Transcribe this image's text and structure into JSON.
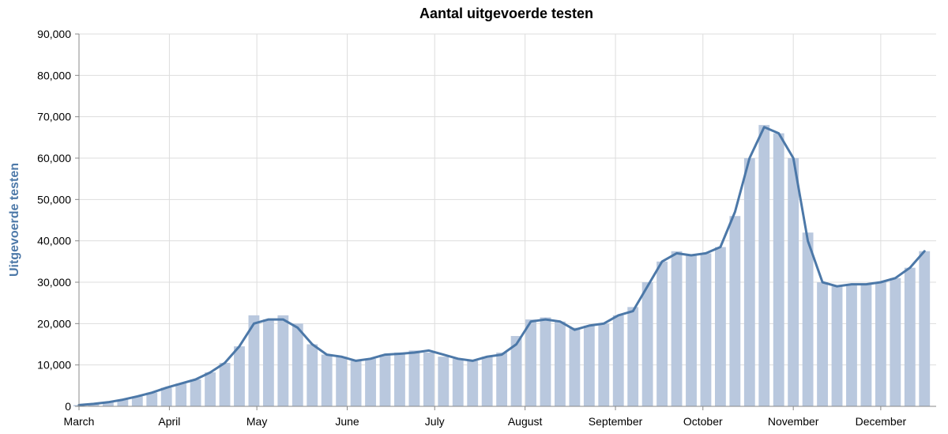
{
  "colors": {
    "bar": "#b9c8de",
    "line": "#4c78a8",
    "ylabel": "#4c78a8",
    "grid": "#dddddd",
    "axis": "#888888"
  },
  "chart_data": {
    "type": "bar",
    "title": "Aantal uitgevoerde testen",
    "xlabel": "",
    "ylabel": "Uitgevoerde testen",
    "ylim": [
      0,
      90000
    ],
    "y_ticks": [
      0,
      10000,
      20000,
      30000,
      40000,
      50000,
      60000,
      70000,
      80000,
      90000
    ],
    "y_tick_labels": [
      "0",
      "10,000",
      "20,000",
      "30,000",
      "40,000",
      "50,000",
      "60,000",
      "70,000",
      "80,000",
      "90,000"
    ],
    "x_range": [
      "2020-03-01",
      "2020-12-20"
    ],
    "x_ticks": [
      {
        "date": "2020-03-01",
        "label": "March"
      },
      {
        "date": "2020-04-01",
        "label": "April"
      },
      {
        "date": "2020-05-01",
        "label": "May"
      },
      {
        "date": "2020-06-01",
        "label": "June"
      },
      {
        "date": "2020-07-01",
        "label": "July"
      },
      {
        "date": "2020-08-01",
        "label": "August"
      },
      {
        "date": "2020-09-01",
        "label": "September"
      },
      {
        "date": "2020-10-01",
        "label": "October"
      },
      {
        "date": "2020-11-01",
        "label": "November"
      },
      {
        "date": "2020-12-01",
        "label": "December"
      }
    ],
    "grid": true,
    "series": [
      {
        "mark": "bar",
        "points": [
          {
            "x": "2020-03-01",
            "y": 300
          },
          {
            "x": "2020-03-06",
            "y": 600
          },
          {
            "x": "2020-03-11",
            "y": 1000
          },
          {
            "x": "2020-03-16",
            "y": 1600
          },
          {
            "x": "2020-03-21",
            "y": 2400
          },
          {
            "x": "2020-03-26",
            "y": 3300
          },
          {
            "x": "2020-03-31",
            "y": 4500
          },
          {
            "x": "2020-04-05",
            "y": 5500
          },
          {
            "x": "2020-04-10",
            "y": 6500
          },
          {
            "x": "2020-04-15",
            "y": 8200
          },
          {
            "x": "2020-04-20",
            "y": 10500
          },
          {
            "x": "2020-04-25",
            "y": 14500
          },
          {
            "x": "2020-04-30",
            "y": 22000
          },
          {
            "x": "2020-05-05",
            "y": 21000
          },
          {
            "x": "2020-05-10",
            "y": 22000
          },
          {
            "x": "2020-05-15",
            "y": 20000
          },
          {
            "x": "2020-05-20",
            "y": 15000
          },
          {
            "x": "2020-05-25",
            "y": 12500
          },
          {
            "x": "2020-05-30",
            "y": 12000
          },
          {
            "x": "2020-06-04",
            "y": 11000
          },
          {
            "x": "2020-06-09",
            "y": 11500
          },
          {
            "x": "2020-06-14",
            "y": 12500
          },
          {
            "x": "2020-06-19",
            "y": 13000
          },
          {
            "x": "2020-06-24",
            "y": 13500
          },
          {
            "x": "2020-06-29",
            "y": 13000
          },
          {
            "x": "2020-07-04",
            "y": 12000
          },
          {
            "x": "2020-07-09",
            "y": 11500
          },
          {
            "x": "2020-07-14",
            "y": 11000
          },
          {
            "x": "2020-07-19",
            "y": 12000
          },
          {
            "x": "2020-07-24",
            "y": 13000
          },
          {
            "x": "2020-07-29",
            "y": 17000
          },
          {
            "x": "2020-08-03",
            "y": 21000
          },
          {
            "x": "2020-08-08",
            "y": 21500
          },
          {
            "x": "2020-08-13",
            "y": 20500
          },
          {
            "x": "2020-08-18",
            "y": 19000
          },
          {
            "x": "2020-08-23",
            "y": 19500
          },
          {
            "x": "2020-08-28",
            "y": 20000
          },
          {
            "x": "2020-09-02",
            "y": 22000
          },
          {
            "x": "2020-09-07",
            "y": 24000
          },
          {
            "x": "2020-09-12",
            "y": 30000
          },
          {
            "x": "2020-09-17",
            "y": 35000
          },
          {
            "x": "2020-09-22",
            "y": 37500
          },
          {
            "x": "2020-09-27",
            "y": 36500
          },
          {
            "x": "2020-10-02",
            "y": 37000
          },
          {
            "x": "2020-10-07",
            "y": 38500
          },
          {
            "x": "2020-10-12",
            "y": 46000
          },
          {
            "x": "2020-10-17",
            "y": 60000
          },
          {
            "x": "2020-10-22",
            "y": 68000
          },
          {
            "x": "2020-10-27",
            "y": 66000
          },
          {
            "x": "2020-11-01",
            "y": 60000
          },
          {
            "x": "2020-11-06",
            "y": 42000
          },
          {
            "x": "2020-11-11",
            "y": 30000
          },
          {
            "x": "2020-11-16",
            "y": 29000
          },
          {
            "x": "2020-11-21",
            "y": 29500
          },
          {
            "x": "2020-11-26",
            "y": 29500
          },
          {
            "x": "2020-12-01",
            "y": 30000
          },
          {
            "x": "2020-12-06",
            "y": 31000
          },
          {
            "x": "2020-12-11",
            "y": 33500
          },
          {
            "x": "2020-12-16",
            "y": 37500
          }
        ]
      },
      {
        "mark": "line",
        "points": [
          {
            "x": "2020-03-01",
            "y": 300
          },
          {
            "x": "2020-03-06",
            "y": 600
          },
          {
            "x": "2020-03-11",
            "y": 1000
          },
          {
            "x": "2020-03-16",
            "y": 1600
          },
          {
            "x": "2020-03-21",
            "y": 2400
          },
          {
            "x": "2020-03-26",
            "y": 3300
          },
          {
            "x": "2020-03-31",
            "y": 4500
          },
          {
            "x": "2020-04-05",
            "y": 5500
          },
          {
            "x": "2020-04-10",
            "y": 6500
          },
          {
            "x": "2020-04-15",
            "y": 8200
          },
          {
            "x": "2020-04-20",
            "y": 10500
          },
          {
            "x": "2020-04-25",
            "y": 14500
          },
          {
            "x": "2020-04-30",
            "y": 20000
          },
          {
            "x": "2020-05-05",
            "y": 21000
          },
          {
            "x": "2020-05-10",
            "y": 21000
          },
          {
            "x": "2020-05-15",
            "y": 19000
          },
          {
            "x": "2020-05-20",
            "y": 15000
          },
          {
            "x": "2020-05-25",
            "y": 12500
          },
          {
            "x": "2020-05-30",
            "y": 12000
          },
          {
            "x": "2020-06-04",
            "y": 11000
          },
          {
            "x": "2020-06-09",
            "y": 11500
          },
          {
            "x": "2020-06-14",
            "y": 12500
          },
          {
            "x": "2020-06-19",
            "y": 12700
          },
          {
            "x": "2020-06-24",
            "y": 13000
          },
          {
            "x": "2020-06-29",
            "y": 13500
          },
          {
            "x": "2020-07-04",
            "y": 12500
          },
          {
            "x": "2020-07-09",
            "y": 11500
          },
          {
            "x": "2020-07-14",
            "y": 11000
          },
          {
            "x": "2020-07-19",
            "y": 12000
          },
          {
            "x": "2020-07-24",
            "y": 12500
          },
          {
            "x": "2020-07-29",
            "y": 15000
          },
          {
            "x": "2020-08-03",
            "y": 20500
          },
          {
            "x": "2020-08-08",
            "y": 21000
          },
          {
            "x": "2020-08-13",
            "y": 20500
          },
          {
            "x": "2020-08-18",
            "y": 18500
          },
          {
            "x": "2020-08-23",
            "y": 19500
          },
          {
            "x": "2020-08-28",
            "y": 20000
          },
          {
            "x": "2020-09-02",
            "y": 22000
          },
          {
            "x": "2020-09-07",
            "y": 23000
          },
          {
            "x": "2020-09-12",
            "y": 29000
          },
          {
            "x": "2020-09-17",
            "y": 35000
          },
          {
            "x": "2020-09-22",
            "y": 37000
          },
          {
            "x": "2020-09-27",
            "y": 36500
          },
          {
            "x": "2020-10-02",
            "y": 37000
          },
          {
            "x": "2020-10-07",
            "y": 38500
          },
          {
            "x": "2020-10-12",
            "y": 47000
          },
          {
            "x": "2020-10-17",
            "y": 60000
          },
          {
            "x": "2020-10-22",
            "y": 67500
          },
          {
            "x": "2020-10-27",
            "y": 66000
          },
          {
            "x": "2020-11-01",
            "y": 60000
          },
          {
            "x": "2020-11-06",
            "y": 40000
          },
          {
            "x": "2020-11-11",
            "y": 30000
          },
          {
            "x": "2020-11-16",
            "y": 29000
          },
          {
            "x": "2020-11-21",
            "y": 29500
          },
          {
            "x": "2020-11-26",
            "y": 29500
          },
          {
            "x": "2020-12-01",
            "y": 30000
          },
          {
            "x": "2020-12-06",
            "y": 31000
          },
          {
            "x": "2020-12-11",
            "y": 33500
          },
          {
            "x": "2020-12-16",
            "y": 37500
          }
        ]
      }
    ]
  }
}
